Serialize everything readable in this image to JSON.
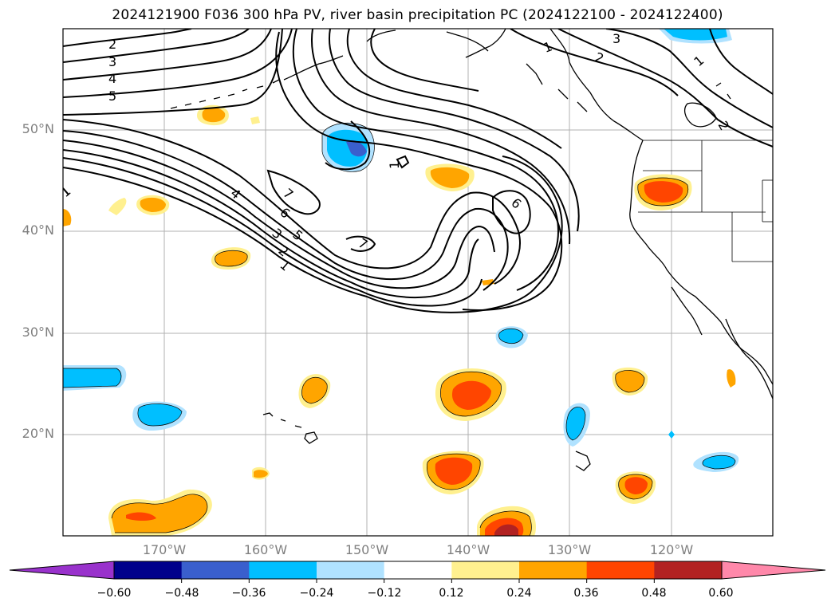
{
  "title": "2024121900 F036 300 hPa PV, river basin precipitation PC (2024122100 - 2024122400)",
  "map": {
    "lat_range": [
      10,
      60
    ],
    "lon_range": [
      -180,
      -110
    ],
    "lat_labels": [
      "50°N",
      "40°N",
      "30°N",
      "20°N"
    ],
    "lon_labels": [
      "170°W",
      "160°W",
      "150°W",
      "140°W",
      "130°W",
      "120°W"
    ],
    "gridline_color": "#b0b0b0",
    "label_color": "#7f7f7f",
    "contour_labels": [
      "2",
      "3",
      "4",
      "5",
      "1",
      "2",
      "3",
      "1",
      "2",
      "1",
      "4",
      "7",
      "6",
      "5",
      "3",
      "2",
      "1",
      "1",
      "6",
      "7"
    ]
  },
  "colorbar": {
    "ticks": [
      "−0.60",
      "−0.48",
      "−0.36",
      "−0.24",
      "−0.12",
      "0.12",
      "0.24",
      "0.36",
      "0.48",
      "0.60"
    ],
    "bins": [
      {
        "color": "#9932cc",
        "role": "under"
      },
      {
        "color": "#00008b"
      },
      {
        "color": "#3a5fcd"
      },
      {
        "color": "#00bfff"
      },
      {
        "color": "#b0e2ff"
      },
      {
        "color": "#ffffff"
      },
      {
        "color": "#fff08f"
      },
      {
        "color": "#ffa500"
      },
      {
        "color": "#ff4500"
      },
      {
        "color": "#b22222"
      },
      {
        "color": "#ff88aa",
        "role": "over"
      }
    ]
  }
}
